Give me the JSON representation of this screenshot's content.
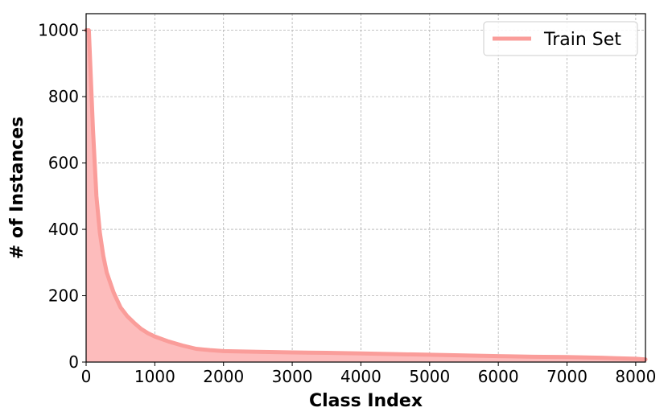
{
  "chart_data": {
    "type": "area",
    "title": "",
    "xlabel": "Class Index",
    "ylabel": "# of Instances",
    "xlim": [
      0,
      8142
    ],
    "ylim": [
      0,
      1050
    ],
    "grid": true,
    "legend_placement": "top-right",
    "x_ticks": [
      0,
      1000,
      2000,
      3000,
      4000,
      5000,
      6000,
      7000,
      8000
    ],
    "y_ticks": [
      0,
      200,
      400,
      600,
      800,
      1000
    ],
    "x_tick_labels": [
      "0",
      "1000",
      "2000",
      "3000",
      "4000",
      "5000",
      "6000",
      "7000",
      "8000"
    ],
    "y_tick_labels": [
      "0",
      "200",
      "400",
      "600",
      "800",
      "1000"
    ],
    "line_color": "#fa9d9a",
    "fill_color": "#fdbcbc",
    "series": [
      {
        "name": "Train Set",
        "x": [
          0,
          40,
          60,
          100,
          150,
          200,
          250,
          300,
          350,
          400,
          500,
          600,
          700,
          800,
          900,
          1000,
          1200,
          1400,
          1600,
          1800,
          2000,
          2500,
          3000,
          3500,
          4000,
          4500,
          5000,
          5500,
          6000,
          6500,
          7000,
          7500,
          8000,
          8142
        ],
        "y": [
          1000,
          1000,
          900,
          700,
          500,
          390,
          320,
          270,
          240,
          210,
          165,
          138,
          118,
          100,
          87,
          77,
          62,
          50,
          40,
          36,
          33,
          31,
          29,
          28,
          26,
          24,
          22,
          20,
          18,
          16,
          15,
          13,
          10,
          8
        ]
      }
    ]
  }
}
